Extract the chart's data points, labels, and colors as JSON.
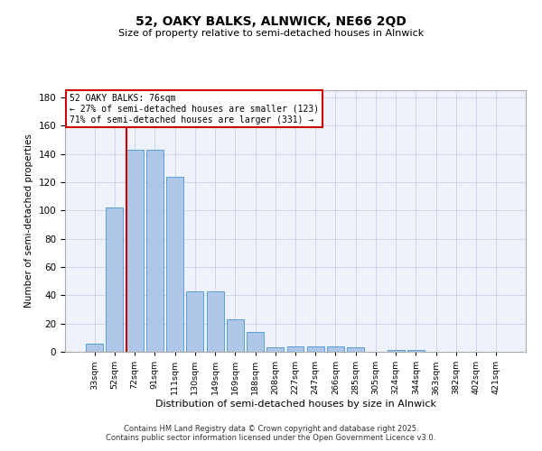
{
  "title1": "52, OAKY BALKS, ALNWICK, NE66 2QD",
  "title2": "Size of property relative to semi-detached houses in Alnwick",
  "xlabel": "Distribution of semi-detached houses by size in Alnwick",
  "ylabel": "Number of semi-detached properties",
  "categories": [
    "33sqm",
    "52sqm",
    "72sqm",
    "91sqm",
    "111sqm",
    "130sqm",
    "149sqm",
    "169sqm",
    "188sqm",
    "208sqm",
    "227sqm",
    "247sqm",
    "266sqm",
    "285sqm",
    "305sqm",
    "324sqm",
    "344sqm",
    "363sqm",
    "382sqm",
    "402sqm",
    "421sqm"
  ],
  "values": [
    6,
    102,
    143,
    143,
    124,
    43,
    43,
    23,
    14,
    3,
    4,
    4,
    4,
    3,
    0,
    1,
    1,
    0,
    0,
    0,
    0
  ],
  "bar_color": "#aec6e8",
  "bar_edge_color": "#5a9fd4",
  "property_label": "52 OAKY BALKS: 76sqm",
  "pct_smaller": 27,
  "count_smaller": 123,
  "pct_larger": 71,
  "count_larger": 331,
  "vline_color": "#cc0000",
  "annotation_box_color": "#cc0000",
  "ylim": [
    0,
    185
  ],
  "yticks": [
    0,
    20,
    40,
    60,
    80,
    100,
    120,
    140,
    160,
    180
  ],
  "bg_color": "#eef2fb",
  "grid_color": "#c8cfe8",
  "footer": "Contains HM Land Registry data © Crown copyright and database right 2025.\nContains public sector information licensed under the Open Government Licence v3.0."
}
